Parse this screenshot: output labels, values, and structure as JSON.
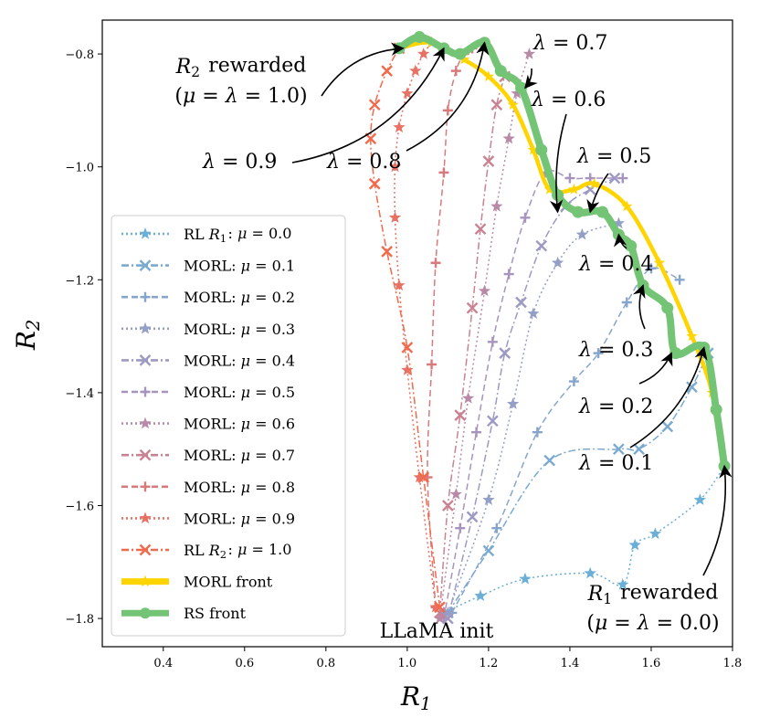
{
  "chart_data": {
    "type": "scatter",
    "xlabel": "R1",
    "ylabel": "R2",
    "xlim": [
      0.25,
      1.8
    ],
    "ylim": [
      -1.85,
      -0.74
    ],
    "xticks": [
      0.4,
      0.6,
      0.8,
      1.0,
      1.2,
      1.4,
      1.6,
      1.8
    ],
    "yticks": [
      -0.8,
      -1.0,
      -1.2,
      -1.4,
      -1.6,
      -1.8
    ],
    "xtick_labels": [
      "0.4",
      "0.6",
      "0.8",
      "1.0",
      "1.2",
      "1.4",
      "1.6",
      "1.8"
    ],
    "ytick_labels": [
      "−0.8",
      "−1.0",
      "−1.2",
      "−1.4",
      "−1.6",
      "−1.8"
    ],
    "legend": [
      {
        "label": "RL R1: μ = 0.0",
        "color": "#6baed6",
        "dash": "dot",
        "marker": "star"
      },
      {
        "label": "MORL: μ = 0.1",
        "color": "#7aaad0",
        "dash": "dashdot",
        "marker": "x"
      },
      {
        "label": "MORL: μ = 0.2",
        "color": "#86a5cc",
        "dash": "dash",
        "marker": "plus"
      },
      {
        "label": "MORL: μ = 0.3",
        "color": "#939fc7",
        "dash": "dot",
        "marker": "star"
      },
      {
        "label": "MORL: μ = 0.4",
        "color": "#9c9ac3",
        "dash": "dashdot",
        "marker": "x"
      },
      {
        "label": "MORL: μ = 0.5",
        "color": "#a694bf",
        "dash": "dash",
        "marker": "plus"
      },
      {
        "label": "MORL: μ = 0.6",
        "color": "#b98aa8",
        "dash": "dot",
        "marker": "star"
      },
      {
        "label": "MORL: μ = 0.7",
        "color": "#c98292",
        "dash": "dashdot",
        "marker": "x"
      },
      {
        "label": "MORL: μ = 0.8",
        "color": "#d87a7c",
        "dash": "dash",
        "marker": "plus"
      },
      {
        "label": "MORL: μ = 0.9",
        "color": "#e77264",
        "dash": "dot",
        "marker": "star"
      },
      {
        "label": "RL R2: μ = 1.0",
        "color": "#f16a4b",
        "dash": "dashdot",
        "marker": "x"
      },
      {
        "label": "MORL front",
        "color": "#ffd400",
        "dash": "solid",
        "marker": "star"
      },
      {
        "label": "RS front",
        "color": "#74c476",
        "dash": "solid",
        "marker": "circle"
      }
    ],
    "series": [
      {
        "name": "RL R1: μ = 0.0",
        "color": "#6baed6",
        "dash": "dot",
        "marker": "star",
        "x": [
          1.09,
          1.18,
          1.29,
          1.45,
          1.53,
          1.56,
          1.61,
          1.72,
          1.78
        ],
        "y": [
          -1.79,
          -1.76,
          -1.73,
          -1.72,
          -1.74,
          -1.67,
          -1.65,
          -1.59,
          -1.53
        ]
      },
      {
        "name": "MORL: μ = 0.1",
        "color": "#7aaad0",
        "dash": "dashdot",
        "marker": "x",
        "x": [
          1.1,
          1.2,
          1.35,
          1.52,
          1.57,
          1.64,
          1.7,
          1.74
        ],
        "y": [
          -1.79,
          -1.68,
          -1.52,
          -1.5,
          -1.5,
          -1.46,
          -1.39,
          -1.33
        ]
      },
      {
        "name": "MORL: μ = 0.2",
        "color": "#86a5cc",
        "dash": "dash",
        "marker": "plus",
        "x": [
          1.11,
          1.22,
          1.32,
          1.41,
          1.47,
          1.54,
          1.6,
          1.67
        ],
        "y": [
          -1.79,
          -1.64,
          -1.47,
          -1.38,
          -1.33,
          -1.24,
          -1.18,
          -1.2
        ]
      },
      {
        "name": "MORL: μ = 0.3",
        "color": "#939fc7",
        "dash": "dot",
        "marker": "star",
        "x": [
          1.1,
          1.2,
          1.26,
          1.31,
          1.37,
          1.43,
          1.52
        ],
        "y": [
          -1.79,
          -1.59,
          -1.42,
          -1.26,
          -1.17,
          -1.12,
          -1.1
        ]
      },
      {
        "name": "MORL: μ = 0.4",
        "color": "#9c9ac3",
        "dash": "dashdot",
        "marker": "x",
        "x": [
          1.1,
          1.16,
          1.21,
          1.24,
          1.28,
          1.33,
          1.39,
          1.45,
          1.51
        ],
        "y": [
          -1.8,
          -1.62,
          -1.45,
          -1.33,
          -1.24,
          -1.14,
          -1.07,
          -1.04,
          -1.02
        ]
      },
      {
        "name": "MORL: μ = 0.5",
        "color": "#a694bf",
        "dash": "dash",
        "marker": "plus",
        "x": [
          1.09,
          1.13,
          1.17,
          1.21,
          1.25,
          1.29,
          1.34,
          1.4,
          1.45,
          1.53
        ],
        "y": [
          -1.8,
          -1.64,
          -1.47,
          -1.31,
          -1.19,
          -1.09,
          -1.01,
          -1.02,
          -1.02,
          -1.02
        ]
      },
      {
        "name": "MORL: μ = 0.6",
        "color": "#b98aa8",
        "dash": "dot",
        "marker": "star",
        "x": [
          1.08,
          1.12,
          1.15,
          1.19,
          1.22,
          1.25,
          1.27,
          1.3
        ],
        "y": [
          -1.8,
          -1.58,
          -1.41,
          -1.22,
          -1.07,
          -0.95,
          -0.87,
          -0.8
        ]
      },
      {
        "name": "MORL: μ = 0.7",
        "color": "#c98292",
        "dash": "dashdot",
        "marker": "x",
        "x": [
          1.08,
          1.1,
          1.13,
          1.16,
          1.18,
          1.2,
          1.22,
          1.24
        ],
        "y": [
          -1.79,
          -1.6,
          -1.44,
          -1.25,
          -1.11,
          -0.99,
          -0.89,
          -0.84
        ]
      },
      {
        "name": "MORL: μ = 0.8",
        "color": "#d87a7c",
        "dash": "dash",
        "marker": "plus",
        "x": [
          1.07,
          1.05,
          1.06,
          1.07,
          1.09,
          1.1,
          1.12,
          1.14,
          1.16
        ],
        "y": [
          -1.78,
          -1.55,
          -1.35,
          -1.17,
          -1.01,
          -0.9,
          -0.83,
          -0.8,
          -0.79
        ]
      },
      {
        "name": "MORL: μ = 0.9",
        "color": "#e77264",
        "dash": "dot",
        "marker": "star",
        "x": [
          1.07,
          1.03,
          1.0,
          0.98,
          0.97,
          0.97,
          0.98,
          1.0,
          1.02,
          1.04,
          1.06
        ],
        "y": [
          -1.78,
          -1.55,
          -1.36,
          -1.21,
          -1.09,
          -1.0,
          -0.93,
          -0.87,
          -0.83,
          -0.8,
          -0.78
        ]
      },
      {
        "name": "RL R2: μ = 1.0",
        "color": "#f16a4b",
        "dash": "dashdot",
        "marker": "x",
        "x": [
          1.08,
          1.04,
          1.0,
          0.95,
          0.92,
          0.91,
          0.92,
          0.95,
          0.98
        ],
        "y": [
          -1.78,
          -1.55,
          -1.32,
          -1.15,
          -1.03,
          -0.95,
          -0.89,
          -0.83,
          -0.79
        ]
      }
    ],
    "front_morl": {
      "name": "MORL front",
      "color": "#ffd400",
      "x": [
        0.98,
        1.06,
        1.14,
        1.2,
        1.26,
        1.31,
        1.35,
        1.41,
        1.46,
        1.54,
        1.62,
        1.7,
        1.75,
        1.78
      ],
      "y": [
        -0.79,
        -0.78,
        -0.81,
        -0.84,
        -0.89,
        -0.97,
        -1.04,
        -1.04,
        -1.03,
        -1.07,
        -1.17,
        -1.3,
        -1.4,
        -1.53
      ]
    },
    "front_rs": {
      "name": "RS front",
      "color": "#74c476",
      "x": [
        0.98,
        1.03,
        1.09,
        1.13,
        1.19,
        1.23,
        1.28,
        1.33,
        1.37,
        1.42,
        1.48,
        1.52,
        1.55,
        1.58,
        1.64,
        1.66,
        1.73,
        1.76,
        1.78
      ],
      "y": [
        -0.79,
        -0.77,
        -0.79,
        -0.8,
        -0.78,
        -0.83,
        -0.86,
        -0.97,
        -1.05,
        -1.08,
        -1.08,
        -1.12,
        -1.14,
        -1.21,
        -1.25,
        -1.33,
        -1.32,
        -1.43,
        -1.53
      ]
    },
    "annotations": [
      {
        "lines": [
          "R2 rewarded",
          "(μ = λ = 1.0)"
        ],
        "target": [
          0.99,
          -0.79
        ]
      },
      {
        "lines": [
          "λ = 0.9"
        ],
        "target": [
          1.09,
          -0.79
        ]
      },
      {
        "lines": [
          "λ = 0.8"
        ],
        "target": [
          1.19,
          -0.78
        ]
      },
      {
        "lines": [
          "λ = 0.7"
        ],
        "target": [
          1.29,
          -0.86
        ]
      },
      {
        "lines": [
          "λ = 0.6"
        ],
        "target": [
          1.37,
          -1.08
        ]
      },
      {
        "lines": [
          "λ = 0.5"
        ],
        "target": [
          1.45,
          -1.08
        ]
      },
      {
        "lines": [
          "λ = 0.4"
        ],
        "target": [
          1.52,
          -1.12
        ]
      },
      {
        "lines": [
          "λ = 0.3"
        ],
        "target": [
          1.58,
          -1.21
        ]
      },
      {
        "lines": [
          "λ = 0.2"
        ],
        "target": [
          1.65,
          -1.33
        ]
      },
      {
        "lines": [
          "λ = 0.1"
        ],
        "target": [
          1.73,
          -1.32
        ]
      },
      {
        "lines": [
          "R1 rewarded",
          "(μ = λ = 0.0)"
        ],
        "target": [
          1.78,
          -1.53
        ]
      },
      {
        "lines": [
          "LLaMA init"
        ],
        "target": null
      }
    ]
  }
}
